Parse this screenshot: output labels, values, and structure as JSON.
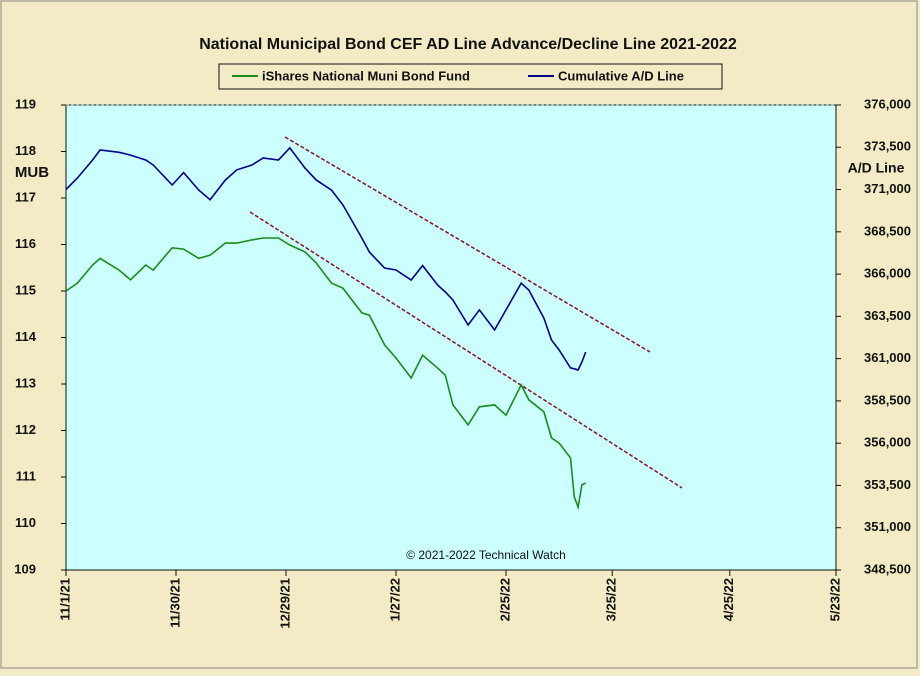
{
  "chart_data": {
    "type": "line",
    "title": "National Municipal Bond CEF AD Line Advance/Decline Line 2021-2022",
    "y_label": "MUB",
    "y2_label": "A/D Line",
    "annotation": "© 2021-2022 Technical Watch",
    "x": [
      "11/1/21",
      "11/4/21",
      "11/8/21",
      "11/10/21",
      "11/15/21",
      "11/18/21",
      "11/22/21",
      "11/24/21",
      "11/29/21",
      "12/2/21",
      "12/6/21",
      "12/9/21",
      "12/13/21",
      "12/16/21",
      "12/20/21",
      "12/23/21",
      "12/27/21",
      "12/30/21",
      "1/3/22",
      "1/6/22",
      "1/10/22",
      "1/13/22",
      "1/18/22",
      "1/20/22",
      "1/24/22",
      "1/27/22",
      "1/31/22",
      "2/3/22",
      "2/7/22",
      "2/9/22",
      "2/11/22",
      "2/15/22",
      "2/18/22",
      "2/22/22",
      "2/25/22",
      "3/1/22",
      "3/3/22",
      "3/7/22",
      "3/9/22",
      "3/11/22",
      "3/14/22",
      "3/15/22",
      "3/16/22",
      "3/17/22",
      "3/18/22"
    ],
    "series": [
      {
        "name": "iShares National Muni Bond Fund",
        "color": "#1a8c1a",
        "values": [
          115.0,
          115.17,
          115.56,
          115.7,
          115.45,
          115.24,
          115.56,
          115.45,
          115.93,
          115.9,
          115.7,
          115.77,
          116.03,
          116.03,
          116.1,
          116.14,
          116.14,
          115.99,
          115.84,
          115.6,
          115.17,
          115.06,
          114.53,
          114.48,
          113.84,
          113.56,
          113.13,
          113.62,
          113.34,
          113.19,
          112.55,
          112.12,
          112.51,
          112.55,
          112.33,
          112.98,
          112.66,
          112.4,
          111.84,
          111.73,
          111.41,
          110.57,
          110.35,
          110.83,
          110.87
        ]
      },
      {
        "name": "Cumulative A/D Line",
        "color": "#00008b",
        "axis": "y2",
        "values": [
          371000,
          371680,
          372750,
          373340,
          373200,
          373040,
          372750,
          372450,
          371270,
          372000,
          370970,
          370400,
          371560,
          372160,
          372450,
          372870,
          372750,
          373460,
          372270,
          371560,
          370970,
          370090,
          368130,
          367300,
          366360,
          366240,
          365650,
          366500,
          365350,
          364940,
          364470,
          362990,
          363880,
          362700,
          363880,
          365470,
          365060,
          363400,
          362100,
          361510,
          360450,
          360400,
          360330,
          360800,
          361390
        ]
      }
    ],
    "xlim": [
      "11/1/21",
      "5/23/22"
    ],
    "xticks": [
      "11/1/21",
      "11/30/21",
      "12/29/21",
      "1/27/22",
      "2/25/22",
      "3/25/22",
      "4/25/22",
      "5/23/22"
    ],
    "ylim": [
      109,
      119
    ],
    "yticks": [
      109,
      110,
      111,
      112,
      113,
      114,
      115,
      116,
      117,
      118,
      119
    ],
    "y2lim": [
      348500,
      376000
    ],
    "y2ticks": [
      {
        "value": 348500,
        "label": "348,500"
      },
      {
        "value": 351000,
        "label": "351,000"
      },
      {
        "value": 353500,
        "label": "353,500"
      },
      {
        "value": 356000,
        "label": "356,000"
      },
      {
        "value": 358500,
        "label": "358,500"
      },
      {
        "value": 361000,
        "label": "361,000"
      },
      {
        "value": 363500,
        "label": "363,500"
      },
      {
        "value": 366000,
        "label": "366,000"
      },
      {
        "value": 368500,
        "label": "368,500"
      },
      {
        "value": 371000,
        "label": "371,000"
      },
      {
        "value": 373500,
        "label": "373,500"
      },
      {
        "value": 376000,
        "label": "376,000"
      }
    ],
    "grid": false
  }
}
